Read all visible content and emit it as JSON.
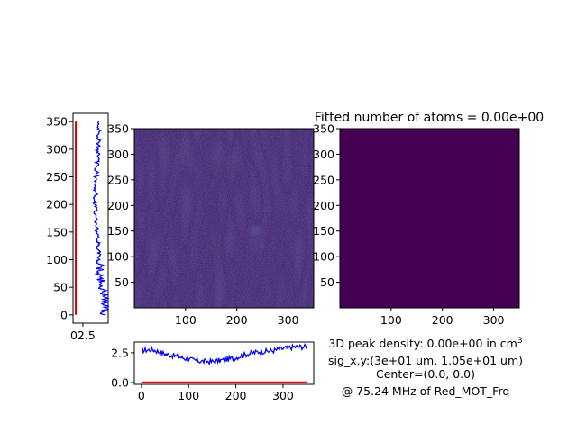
{
  "title": "Fitted number of atoms = 0.00e+00",
  "annotations": {
    "density_prefix": "3D peak density: 0.00e+00 in cm",
    "density_sup": "3",
    "sigma": "sig_x,y:(3e+01 um, 1.05e+01 um)",
    "center": "Center=(0.0, 0.0)",
    "freq": "@ 75.24 MHz of Red_MOT_Frq"
  },
  "chart_data": [
    {
      "type": "heatmap",
      "name": "image_raw",
      "xlim": [
        0,
        350
      ],
      "ylim": [
        0,
        350
      ],
      "xticks": [
        "100",
        "200",
        "300"
      ],
      "yticks": [
        "50",
        "100",
        "150",
        "200",
        "250",
        "300",
        "350"
      ],
      "colormap": "viridis",
      "base_color": "#3f1f66",
      "note_spot": [
        235,
        150
      ]
    },
    {
      "type": "heatmap",
      "name": "image_fit",
      "xlim": [
        0,
        350
      ],
      "ylim": [
        0,
        350
      ],
      "xticks": [
        "100",
        "200",
        "300"
      ],
      "yticks": [
        "50",
        "100",
        "150",
        "200",
        "250",
        "300",
        "350"
      ],
      "color": "#440154"
    },
    {
      "type": "line",
      "name": "horizontal_profile",
      "xlim": [
        -15,
        365
      ],
      "ylim": [
        -0.15,
        3.4
      ],
      "xticks": [
        "0",
        "100",
        "200",
        "300"
      ],
      "yticks": [
        "0.0",
        "2.5"
      ],
      "series": [
        {
          "color": "#0000ff",
          "x": [
            0,
            25,
            50,
            75,
            100,
            125,
            150,
            175,
            200,
            225,
            250,
            275,
            300,
            325,
            350
          ],
          "y": [
            2.7,
            2.75,
            2.4,
            2.2,
            1.95,
            1.8,
            1.75,
            1.9,
            2.1,
            2.4,
            2.6,
            2.65,
            2.85,
            3.0,
            3.0
          ]
        },
        {
          "color": "#ff0000",
          "x": [
            0,
            350
          ],
          "y": [
            0.02,
            0.02
          ]
        }
      ]
    },
    {
      "type": "line",
      "name": "vertical_profile",
      "xlim": [
        -0.3,
        3.5
      ],
      "ylim": [
        -15,
        365
      ],
      "xticks": [
        "02.5"
      ],
      "yticks": [
        "0",
        "50",
        "100",
        "150",
        "200",
        "250",
        "300",
        "350"
      ],
      "series": [
        {
          "color": "#0000ff",
          "y": [
            0,
            25,
            50,
            75,
            100,
            125,
            150,
            175,
            200,
            225,
            250,
            275,
            300,
            325,
            350
          ],
          "x": [
            3.0,
            3.2,
            2.9,
            2.6,
            2.5,
            2.45,
            2.3,
            2.2,
            2.1,
            2.15,
            2.2,
            2.3,
            2.4,
            2.5,
            2.6
          ]
        },
        {
          "color": "#cc0000",
          "y": [
            0,
            350
          ],
          "x": [
            0.0,
            0.0
          ]
        }
      ]
    }
  ]
}
